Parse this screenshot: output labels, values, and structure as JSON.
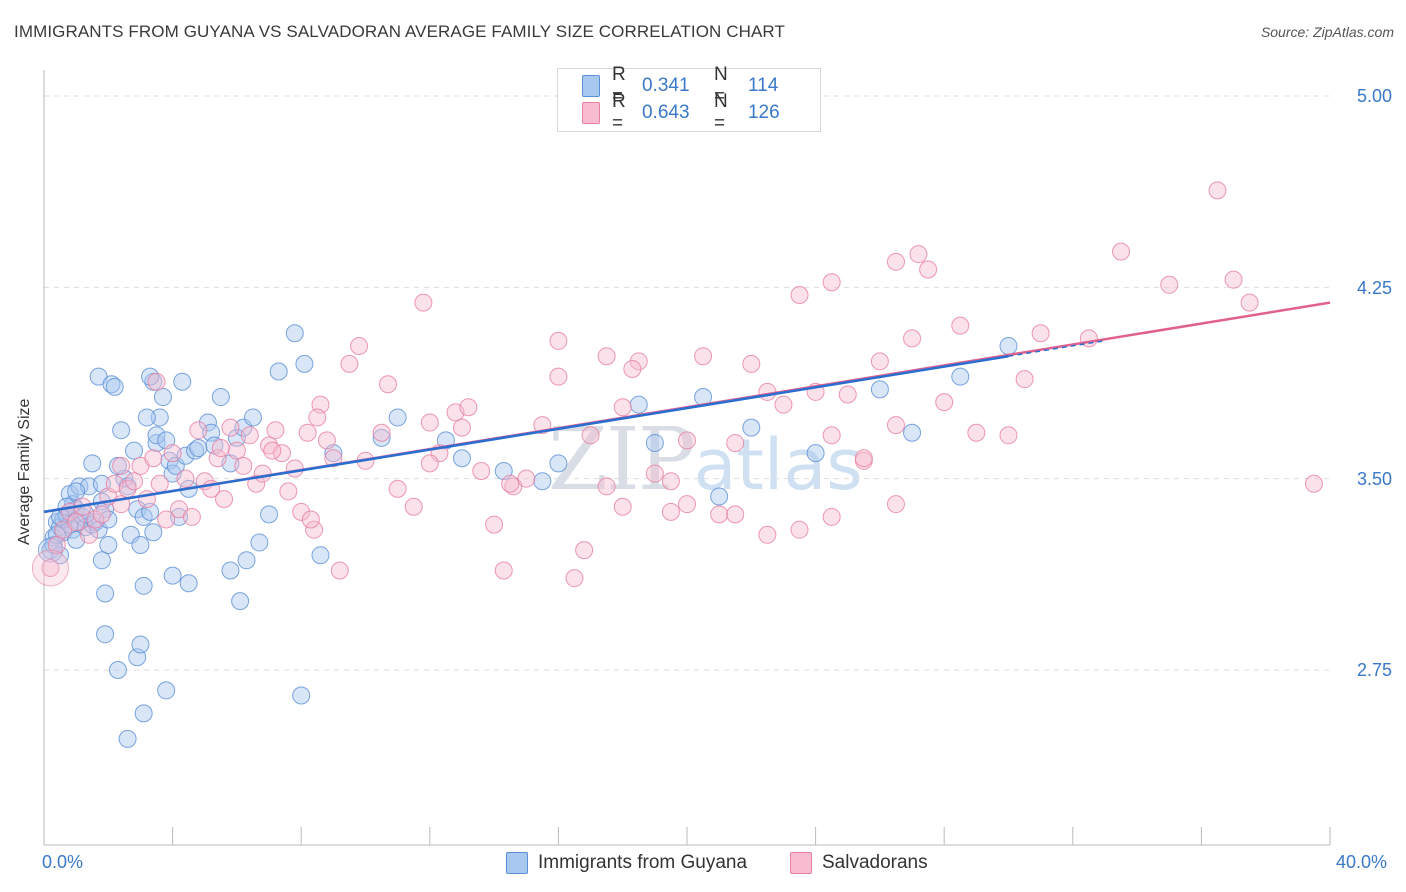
{
  "header": {
    "title": "IMMIGRANTS FROM GUYANA VS SALVADORAN AVERAGE FAMILY SIZE CORRELATION CHART",
    "source": "Source: ZipAtlas.com"
  },
  "watermark": {
    "zip": "ZIP",
    "atlas": "atlas"
  },
  "legend": {
    "series1": {
      "r_label": "R =",
      "r_value": "0.341",
      "n_label": "N =",
      "n_value": "114"
    },
    "series2": {
      "r_label": "R =",
      "r_value": "0.643",
      "n_label": "N =",
      "n_value": "126"
    }
  },
  "colors": {
    "blue_fill": "#a9c8ef",
    "blue_stroke": "#5b8fd6",
    "blue_line": "#2a6fd0",
    "pink_fill": "#f7bcd0",
    "pink_stroke": "#e67fa2",
    "pink_line": "#e0608f",
    "grid": "#dddddd",
    "tick_text": "#3a78c9"
  },
  "chart_data": {
    "type": "scatter",
    "title": "IMMIGRANTS FROM GUYANA VS SALVADORAN AVERAGE FAMILY SIZE CORRELATION CHART",
    "xlabel": "",
    "ylabel": "Average Family Size",
    "xlim": [
      0,
      40
    ],
    "ylim": [
      2.3,
      5.1
    ],
    "x_tick_labels": [
      "0.0%",
      "40.0%"
    ],
    "y_ticks": [
      2.75,
      3.5,
      4.25,
      5.0
    ],
    "y_tick_labels": [
      "2.75",
      "3.50",
      "4.25",
      "5.00"
    ],
    "grid": true,
    "legend_position": "top-center",
    "series": [
      {
        "name": "Immigrants from Guyana",
        "color": "#5b8fd6",
        "trend": {
          "x": [
            0,
            30
          ],
          "y": [
            3.37,
            3.98
          ]
        },
        "points": [
          [
            0.2,
            3.22
          ],
          [
            0.3,
            3.27
          ],
          [
            0.4,
            3.33
          ],
          [
            0.5,
            3.31
          ],
          [
            0.6,
            3.29
          ],
          [
            0.7,
            3.35
          ],
          [
            0.8,
            3.44
          ],
          [
            0.9,
            3.3
          ],
          [
            1.0,
            3.26
          ],
          [
            1.1,
            3.33
          ],
          [
            0.3,
            3.24
          ],
          [
            0.4,
            3.28
          ],
          [
            0.5,
            3.2
          ],
          [
            0.6,
            3.34
          ],
          [
            0.7,
            3.36
          ],
          [
            0.8,
            3.32
          ],
          [
            0.9,
            3.4
          ],
          [
            1.0,
            3.38
          ],
          [
            1.2,
            3.35
          ],
          [
            1.3,
            3.31
          ],
          [
            1.1,
            3.47
          ],
          [
            1.4,
            3.47
          ],
          [
            1.5,
            3.32
          ],
          [
            1.6,
            3.33
          ],
          [
            1.7,
            3.3
          ],
          [
            1.8,
            3.41
          ],
          [
            1.9,
            3.38
          ],
          [
            2.0,
            3.34
          ],
          [
            1.5,
            3.56
          ],
          [
            1.8,
            3.48
          ],
          [
            1.7,
            3.9
          ],
          [
            2.1,
            3.87
          ],
          [
            2.2,
            3.86
          ],
          [
            2.4,
            3.69
          ],
          [
            2.5,
            3.5
          ],
          [
            2.6,
            3.47
          ],
          [
            2.8,
            3.61
          ],
          [
            2.9,
            3.38
          ],
          [
            2.3,
            3.55
          ],
          [
            2.0,
            3.24
          ],
          [
            1.8,
            3.18
          ],
          [
            1.9,
            3.05
          ],
          [
            2.7,
            3.28
          ],
          [
            3.0,
            3.24
          ],
          [
            3.1,
            3.35
          ],
          [
            3.3,
            3.37
          ],
          [
            3.4,
            3.29
          ],
          [
            3.5,
            3.64
          ],
          [
            3.6,
            3.74
          ],
          [
            3.7,
            3.82
          ],
          [
            3.4,
            3.88
          ],
          [
            3.2,
            3.74
          ],
          [
            3.3,
            3.9
          ],
          [
            3.5,
            3.67
          ],
          [
            3.8,
            3.65
          ],
          [
            3.9,
            3.57
          ],
          [
            4.0,
            3.52
          ],
          [
            4.1,
            3.55
          ],
          [
            4.2,
            3.35
          ],
          [
            4.3,
            3.88
          ],
          [
            4.4,
            3.59
          ],
          [
            4.5,
            3.46
          ],
          [
            4.7,
            3.61
          ],
          [
            4.8,
            3.62
          ],
          [
            5.1,
            3.72
          ],
          [
            5.2,
            3.68
          ],
          [
            5.3,
            3.63
          ],
          [
            5.5,
            3.82
          ],
          [
            5.8,
            3.56
          ],
          [
            6.0,
            3.66
          ],
          [
            6.2,
            3.7
          ],
          [
            6.5,
            3.74
          ],
          [
            6.7,
            3.25
          ],
          [
            7.0,
            3.36
          ],
          [
            7.3,
            3.92
          ],
          [
            7.8,
            4.07
          ],
          [
            8.1,
            3.95
          ],
          [
            8.6,
            3.2
          ],
          [
            6.3,
            3.18
          ],
          [
            5.8,
            3.14
          ],
          [
            3.1,
            3.08
          ],
          [
            4.0,
            3.12
          ],
          [
            4.5,
            3.09
          ],
          [
            2.9,
            2.8
          ],
          [
            3.0,
            2.85
          ],
          [
            2.3,
            2.75
          ],
          [
            3.8,
            2.67
          ],
          [
            3.1,
            2.58
          ],
          [
            2.6,
            2.48
          ],
          [
            8.0,
            2.65
          ],
          [
            6.1,
            3.02
          ],
          [
            1.9,
            2.89
          ],
          [
            11.0,
            3.74
          ],
          [
            12.5,
            3.65
          ],
          [
            14.3,
            3.53
          ],
          [
            16.0,
            3.56
          ],
          [
            18.5,
            3.79
          ],
          [
            21.0,
            3.43
          ],
          [
            24.0,
            3.6
          ],
          [
            27.0,
            3.68
          ],
          [
            26.0,
            3.85
          ],
          [
            28.5,
            3.9
          ],
          [
            30.0,
            4.02
          ],
          [
            20.5,
            3.82
          ],
          [
            9.0,
            3.6
          ],
          [
            10.5,
            3.66
          ],
          [
            13.0,
            3.58
          ],
          [
            15.5,
            3.49
          ],
          [
            19.0,
            3.64
          ],
          [
            22.0,
            3.7
          ],
          [
            0.5,
            3.35
          ],
          [
            1.0,
            3.45
          ],
          [
            0.7,
            3.39
          ],
          [
            1.3,
            3.36
          ]
        ]
      },
      {
        "name": "Salvadorans",
        "color": "#e67fa2",
        "trend": {
          "x": [
            0,
            40
          ],
          "y": [
            3.37,
            4.19
          ]
        },
        "points": [
          [
            0.2,
            3.15
          ],
          [
            0.4,
            3.24
          ],
          [
            0.6,
            3.3
          ],
          [
            0.8,
            3.37
          ],
          [
            1.0,
            3.33
          ],
          [
            1.2,
            3.39
          ],
          [
            1.4,
            3.28
          ],
          [
            1.6,
            3.34
          ],
          [
            1.8,
            3.36
          ],
          [
            2.0,
            3.43
          ],
          [
            2.2,
            3.48
          ],
          [
            2.4,
            3.4
          ],
          [
            2.6,
            3.46
          ],
          [
            2.8,
            3.49
          ],
          [
            3.0,
            3.55
          ],
          [
            3.2,
            3.42
          ],
          [
            3.4,
            3.58
          ],
          [
            3.6,
            3.48
          ],
          [
            3.8,
            3.34
          ],
          [
            4.0,
            3.6
          ],
          [
            4.2,
            3.38
          ],
          [
            4.4,
            3.5
          ],
          [
            4.6,
            3.35
          ],
          [
            4.8,
            3.69
          ],
          [
            5.0,
            3.49
          ],
          [
            5.2,
            3.46
          ],
          [
            5.4,
            3.58
          ],
          [
            5.6,
            3.42
          ],
          [
            5.8,
            3.7
          ],
          [
            6.0,
            3.61
          ],
          [
            6.2,
            3.55
          ],
          [
            6.4,
            3.67
          ],
          [
            6.6,
            3.48
          ],
          [
            6.8,
            3.52
          ],
          [
            7.0,
            3.63
          ],
          [
            7.2,
            3.69
          ],
          [
            7.4,
            3.6
          ],
          [
            7.6,
            3.45
          ],
          [
            7.8,
            3.54
          ],
          [
            8.0,
            3.37
          ],
          [
            8.2,
            3.68
          ],
          [
            8.4,
            3.3
          ],
          [
            8.6,
            3.79
          ],
          [
            8.8,
            3.65
          ],
          [
            9.0,
            3.58
          ],
          [
            9.2,
            3.14
          ],
          [
            9.5,
            3.95
          ],
          [
            10.0,
            3.57
          ],
          [
            10.5,
            3.68
          ],
          [
            11.0,
            3.46
          ],
          [
            11.5,
            3.39
          ],
          [
            12.0,
            3.72
          ],
          [
            12.3,
            3.6
          ],
          [
            12.8,
            3.76
          ],
          [
            13.2,
            3.78
          ],
          [
            13.6,
            3.53
          ],
          [
            14.0,
            3.32
          ],
          [
            14.3,
            3.14
          ],
          [
            14.6,
            3.47
          ],
          [
            15.0,
            3.5
          ],
          [
            15.5,
            3.71
          ],
          [
            16.0,
            3.9
          ],
          [
            16.5,
            3.11
          ],
          [
            17.0,
            3.67
          ],
          [
            17.5,
            3.47
          ],
          [
            18.0,
            3.78
          ],
          [
            18.5,
            3.96
          ],
          [
            19.0,
            3.52
          ],
          [
            19.5,
            3.37
          ],
          [
            20.0,
            3.65
          ],
          [
            20.5,
            3.98
          ],
          [
            21.0,
            3.36
          ],
          [
            21.5,
            3.64
          ],
          [
            22.0,
            3.95
          ],
          [
            22.5,
            3.84
          ],
          [
            23.0,
            3.79
          ],
          [
            23.5,
            3.3
          ],
          [
            24.0,
            3.84
          ],
          [
            24.5,
            3.67
          ],
          [
            25.0,
            3.83
          ],
          [
            25.5,
            3.57
          ],
          [
            26.0,
            3.96
          ],
          [
            26.5,
            3.71
          ],
          [
            27.0,
            4.05
          ],
          [
            27.5,
            4.32
          ],
          [
            28.0,
            3.8
          ],
          [
            28.5,
            4.1
          ],
          [
            29.0,
            3.68
          ],
          [
            30.0,
            3.67
          ],
          [
            30.5,
            3.89
          ],
          [
            31.0,
            4.07
          ],
          [
            32.5,
            4.05
          ],
          [
            33.5,
            4.39
          ],
          [
            35.0,
            4.26
          ],
          [
            36.5,
            4.63
          ],
          [
            37.0,
            4.28
          ],
          [
            37.5,
            4.19
          ],
          [
            39.5,
            3.48
          ],
          [
            24.5,
            4.27
          ],
          [
            26.5,
            4.35
          ],
          [
            27.2,
            4.38
          ],
          [
            23.5,
            4.22
          ],
          [
            11.8,
            4.19
          ],
          [
            8.5,
            3.74
          ],
          [
            9.8,
            4.02
          ],
          [
            10.7,
            3.87
          ],
          [
            16.0,
            4.04
          ],
          [
            17.5,
            3.98
          ],
          [
            18.3,
            3.93
          ],
          [
            13.0,
            3.7
          ],
          [
            12.0,
            3.56
          ],
          [
            20.0,
            3.4
          ],
          [
            21.5,
            3.36
          ],
          [
            22.5,
            3.28
          ],
          [
            24.5,
            3.35
          ],
          [
            25.5,
            3.58
          ],
          [
            26.5,
            3.4
          ],
          [
            16.8,
            3.22
          ],
          [
            18.0,
            3.39
          ],
          [
            19.5,
            3.49
          ],
          [
            3.5,
            3.88
          ],
          [
            2.4,
            3.55
          ],
          [
            5.5,
            3.62
          ],
          [
            7.1,
            3.61
          ],
          [
            8.3,
            3.34
          ],
          [
            14.5,
            3.48
          ]
        ]
      }
    ]
  },
  "bottom_legend": {
    "item1": "Immigrants from Guyana",
    "item2": "Salvadorans"
  }
}
